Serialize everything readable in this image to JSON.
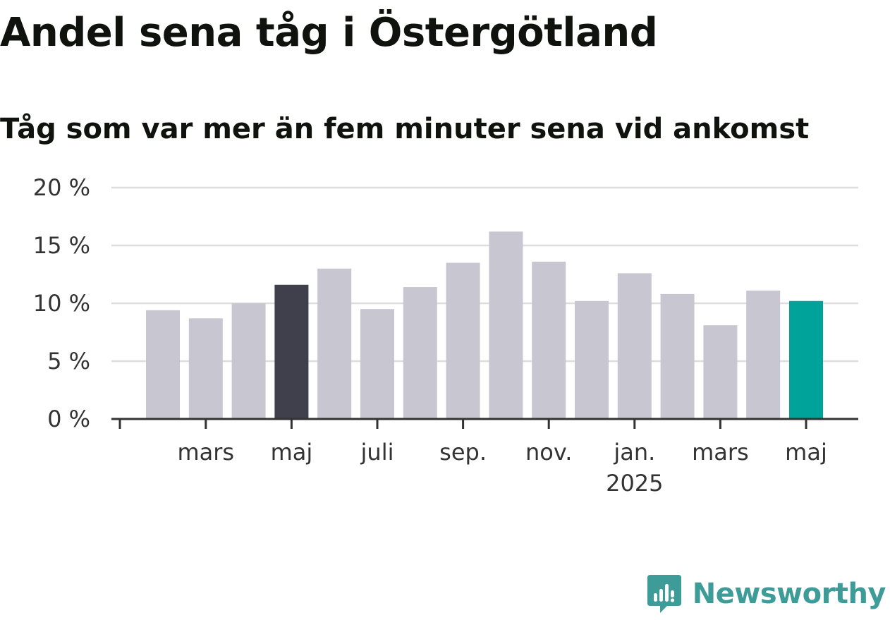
{
  "title": "Andel sena tåg i Östergötland",
  "subtitle": "Tåg som var mer än fem minuter sena vid ankomst",
  "brand": {
    "name": "Newsworthy",
    "logo_icon": "newsworthy-logo-icon",
    "color": "#3d9c98"
  },
  "chart_data": {
    "type": "bar",
    "ylim": [
      0,
      20
    ],
    "y_ticks": [
      {
        "value": 0,
        "label": "0 %"
      },
      {
        "value": 5,
        "label": "5 %"
      },
      {
        "value": 10,
        "label": "10 %"
      },
      {
        "value": 15,
        "label": "15 %"
      },
      {
        "value": 20,
        "label": "20 %"
      }
    ],
    "x_tick_labels": [
      {
        "index": 1,
        "label": "mars",
        "sub": ""
      },
      {
        "index": 3,
        "label": "maj",
        "sub": ""
      },
      {
        "index": 5,
        "label": "juli",
        "sub": ""
      },
      {
        "index": 7,
        "label": "sep.",
        "sub": ""
      },
      {
        "index": 9,
        "label": "nov.",
        "sub": ""
      },
      {
        "index": 11,
        "label": "jan.",
        "sub": "2025"
      },
      {
        "index": 13,
        "label": "mars",
        "sub": ""
      },
      {
        "index": 15,
        "label": "maj",
        "sub": ""
      }
    ],
    "categories": [
      "2024-02",
      "2024-03",
      "2024-04",
      "2024-05",
      "2024-06",
      "2024-07",
      "2024-08",
      "2024-09",
      "2024-10",
      "2024-11",
      "2024-12",
      "2025-01",
      "2025-02",
      "2025-03",
      "2025-04",
      "2025-05"
    ],
    "values": [
      9.4,
      8.7,
      10.0,
      11.6,
      13.0,
      9.5,
      11.4,
      13.5,
      16.2,
      13.6,
      10.2,
      12.6,
      10.8,
      8.1,
      11.1,
      10.2
    ],
    "highlight": [
      {
        "index": 3,
        "color": "#403f4c"
      },
      {
        "index": 15,
        "color": "#00a39a"
      }
    ],
    "colors": {
      "bar": "#c8c7d1",
      "grid": "#dddddd",
      "axis": "#333333"
    },
    "grid": true,
    "legend": "none"
  }
}
